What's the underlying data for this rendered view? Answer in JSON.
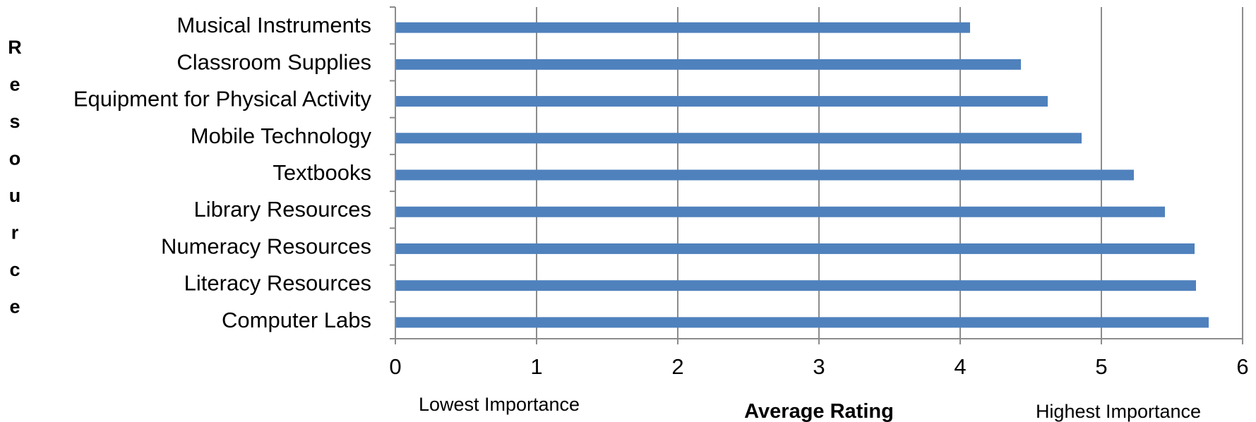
{
  "chart_data": {
    "type": "bar",
    "orientation": "horizontal",
    "categories": [
      "Musical Instruments",
      "Classroom Supplies",
      "Equipment for Physical Activity",
      "Mobile Technology",
      "Textbooks",
      "Library Resources",
      "Numeracy Resources",
      "Literacy Resources",
      "Computer Labs"
    ],
    "values": [
      4.07,
      4.43,
      4.62,
      4.86,
      5.23,
      5.45,
      5.66,
      5.67,
      5.76
    ],
    "xlabel": "Average Rating",
    "ylabel": "Resource",
    "xlim": [
      0,
      6
    ],
    "x_ticks": [
      "0",
      "1",
      "2",
      "3",
      "4",
      "5",
      "6"
    ],
    "x_annotations": {
      "low": "Lowest Importance",
      "high": "Highest Importance"
    },
    "bar_color": "#4f81bd",
    "grid": "vertical",
    "legend": "none"
  }
}
